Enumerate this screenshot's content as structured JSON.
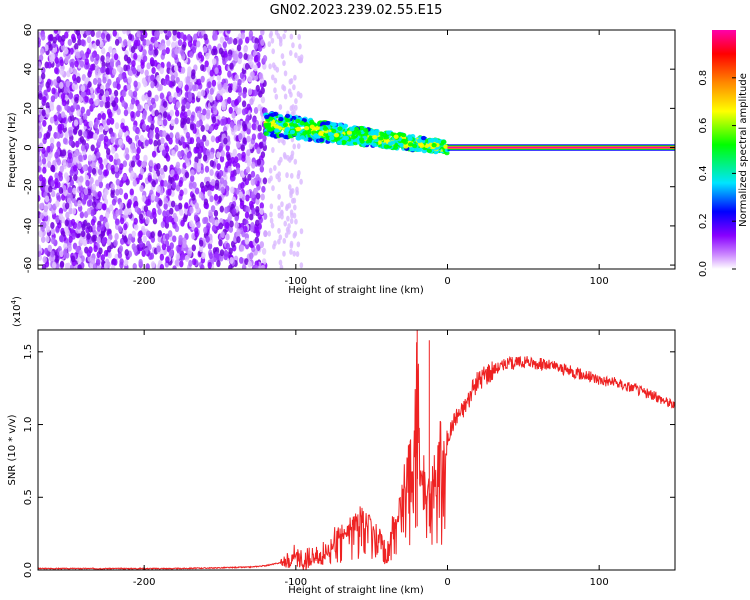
{
  "title": "GN02.2023.239.02.55.E15",
  "chart_data": [
    {
      "type": "heatmap",
      "xlabel": "Height of straight line (km)",
      "ylabel": "Frequency (Hz)",
      "xlim": [
        -270,
        150
      ],
      "ylim": [
        -62,
        60
      ],
      "x_ticks": [
        -200,
        -100,
        0,
        100
      ],
      "y_ticks": [
        -60,
        -40,
        -20,
        0,
        20,
        40,
        60
      ],
      "colorbar": {
        "label": "Normalized spectral amplitude",
        "range": [
          0,
          1
        ],
        "ticks": [
          0.0,
          0.2,
          0.4,
          0.6,
          0.8
        ],
        "colormap": [
          "#ffffff",
          "#8800ff",
          "#0000ff",
          "#00e5ff",
          "#00ff00",
          "#ffff00",
          "#ff8800",
          "#ff0000",
          "#ff00aa"
        ]
      },
      "regions": [
        {
          "x_range": [
            -270,
            -120
          ],
          "description_value": 0.25,
          "frequency_span": [
            -62,
            60
          ]
        },
        {
          "x_range": [
            -120,
            0
          ],
          "description_value": 0.55,
          "frequency_center_start": 12,
          "frequency_center_end": 0
        },
        {
          "x_range": [
            0,
            150
          ],
          "description_value": 0.95,
          "frequency_center": 0
        }
      ]
    },
    {
      "type": "line",
      "xlabel": "Height of straight line (km)",
      "ylabel": "SNR (10 * v/v)",
      "y_multiplier": "(x10",
      "y_multiplier_exp": "4",
      "y_multiplier_close": ")",
      "xlim": [
        -270,
        150
      ],
      "ylim": [
        0,
        1.65
      ],
      "x_ticks": [
        -200,
        -100,
        0,
        100
      ],
      "y_ticks": [
        "0.0",
        "0.5",
        "1.0",
        "1.5"
      ],
      "series": [
        {
          "color": "#ee2222",
          "x": [
            -270,
            -240,
            -210,
            -180,
            -150,
            -130,
            -120,
            -110,
            -100,
            -95,
            -90,
            -85,
            -80,
            -75,
            -70,
            -65,
            -60,
            -55,
            -50,
            -45,
            -40,
            -35,
            -30,
            -25,
            -22,
            -20,
            -18,
            -15,
            -12,
            -10,
            -5,
            0,
            5,
            10,
            15,
            20,
            25,
            30,
            40,
            50,
            60,
            70,
            80,
            90,
            100,
            110,
            120,
            130,
            140,
            150
          ],
          "y": [
            0.01,
            0.01,
            0.01,
            0.01,
            0.015,
            0.02,
            0.03,
            0.05,
            0.1,
            0.06,
            0.08,
            0.12,
            0.16,
            0.2,
            0.25,
            0.3,
            0.33,
            0.36,
            0.3,
            0.25,
            0.1,
            0.35,
            0.5,
            0.7,
            0.85,
            1.55,
            0.6,
            0.65,
            0.55,
            0.6,
            0.85,
            0.9,
            1.05,
            1.1,
            1.2,
            1.3,
            1.35,
            1.38,
            1.42,
            1.43,
            1.42,
            1.4,
            1.37,
            1.34,
            1.31,
            1.29,
            1.26,
            1.22,
            1.18,
            1.13
          ]
        }
      ]
    }
  ]
}
